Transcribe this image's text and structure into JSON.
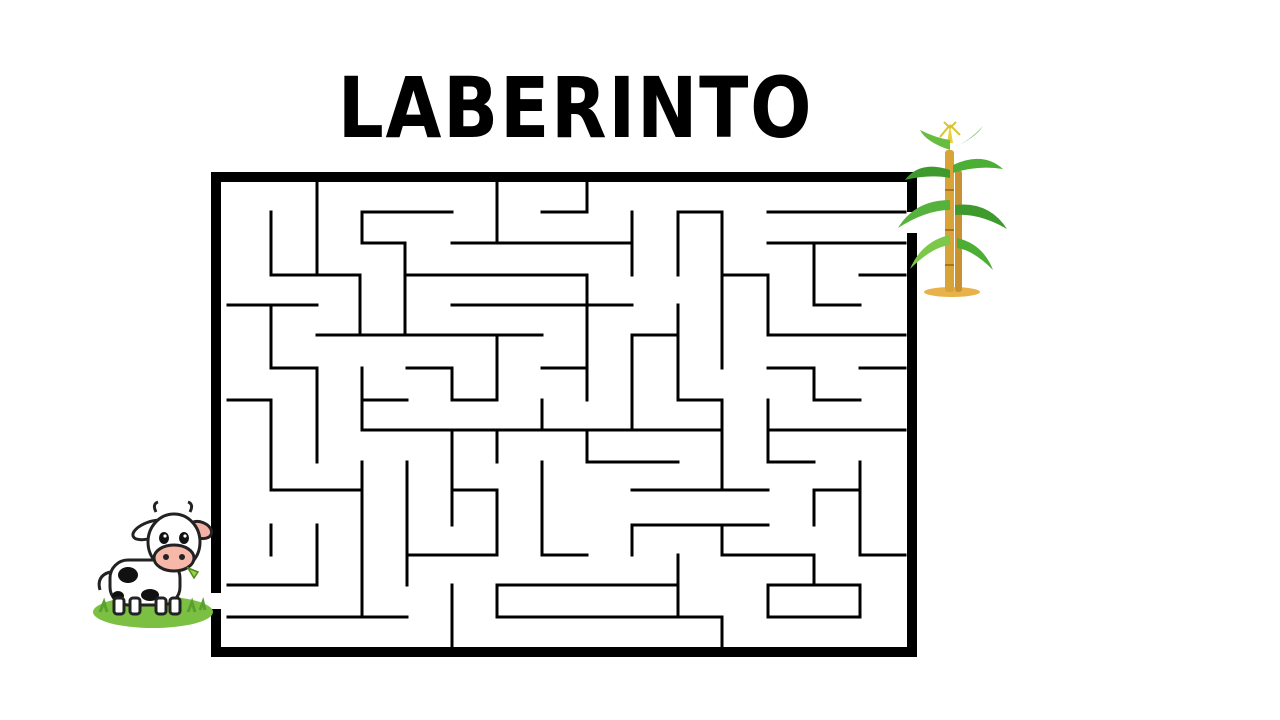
{
  "title": "LABERINTO",
  "colors": {
    "wall": "#000000",
    "background": "#ffffff",
    "grass": "#7bc043",
    "stalk": "#d8a437",
    "leaf": "#3f9a2e"
  },
  "icons": {
    "start": "cow-icon",
    "goal": "corn-plant-icon"
  }
}
